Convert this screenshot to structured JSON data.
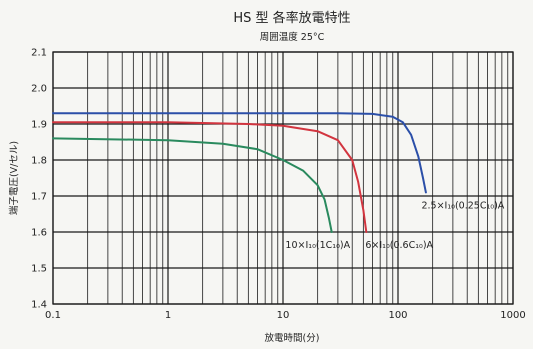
{
  "chart_data": {
    "type": "line",
    "title": "HS 型 各率放電特性",
    "subtitle": "周囲温度 25°C",
    "xlabel": "放電時間(分)",
    "ylabel": "端子電圧(V/セル)",
    "x_scale": "log",
    "xlim": [
      0.1,
      1000
    ],
    "ylim": [
      1.4,
      2.1
    ],
    "x_ticks": [
      0.1,
      1,
      10,
      100,
      1000
    ],
    "x_tick_labels": [
      "0.1",
      "1",
      "10",
      "100",
      "1000"
    ],
    "y_ticks": [
      1.4,
      1.5,
      1.6,
      1.7,
      1.8,
      1.9,
      2.0,
      2.1
    ],
    "y_tick_labels": [
      "1.4",
      "1.5",
      "1.6",
      "1.7",
      "1.8",
      "1.9",
      "2.0",
      "2.1"
    ],
    "grid": true,
    "series": [
      {
        "name": "2.5×I₁₀(0.25C₁₀)A",
        "color": "#2b4fa8",
        "x": [
          0.1,
          1,
          10,
          30,
          60,
          90,
          110,
          130,
          150,
          165,
          175
        ],
        "y": [
          1.93,
          1.93,
          1.93,
          1.93,
          1.928,
          1.92,
          1.905,
          1.87,
          1.81,
          1.75,
          1.71
        ]
      },
      {
        "name": "6×I₁₀(0.6C₁₀)A",
        "color": "#d2353f",
        "x": [
          0.1,
          1,
          5,
          10,
          20,
          30,
          40,
          45,
          50,
          53
        ],
        "y": [
          1.905,
          1.905,
          1.9,
          1.895,
          1.88,
          1.855,
          1.8,
          1.74,
          1.66,
          1.6
        ]
      },
      {
        "name": "10×I₁₀(1C₁₀)A",
        "color": "#2a8a5e",
        "x": [
          0.1,
          1,
          3,
          6,
          10,
          15,
          20,
          23,
          25,
          26.5
        ],
        "y": [
          1.86,
          1.855,
          1.845,
          1.83,
          1.8,
          1.77,
          1.73,
          1.69,
          1.64,
          1.6
        ]
      }
    ],
    "annotations": [
      {
        "text": "2.5×I₁₀(0.25C₁₀)A",
        "x": 160,
        "y": 1.665
      },
      {
        "text": "10×I₁₀(1C₁₀)A",
        "x": 10.5,
        "y": 1.555
      },
      {
        "text": "6×I₁₀(0.6C₁₀)A",
        "x": 52,
        "y": 1.555
      }
    ]
  }
}
